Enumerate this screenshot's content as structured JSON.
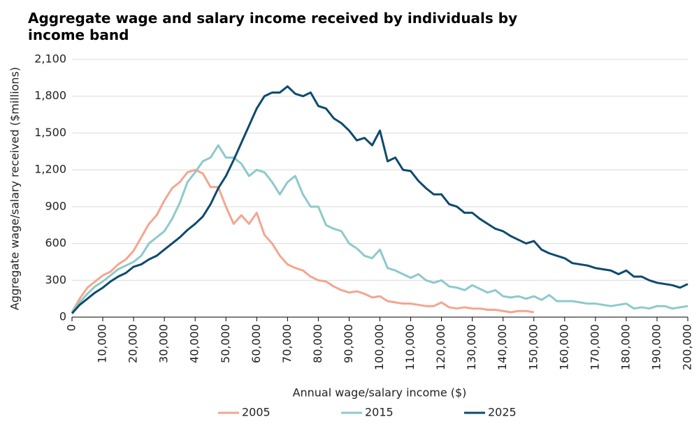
{
  "chart_data": {
    "type": "line",
    "title": "Aggregate wage and salary income received by individuals by income band",
    "x_label": "Annual wage/salary income ($)",
    "y_label": "Aggregate wage/salary received ($millions)",
    "x": [
      0,
      2500,
      5000,
      7500,
      10000,
      12500,
      15000,
      17500,
      20000,
      22500,
      25000,
      27500,
      30000,
      32500,
      35000,
      37500,
      40000,
      42500,
      45000,
      47500,
      50000,
      52500,
      55000,
      57500,
      60000,
      62500,
      65000,
      67500,
      70000,
      72500,
      75000,
      77500,
      80000,
      82500,
      85000,
      87500,
      90000,
      92500,
      95000,
      97500,
      100000,
      102500,
      105000,
      107500,
      110000,
      112500,
      115000,
      117500,
      120000,
      122500,
      125000,
      127500,
      130000,
      132500,
      135000,
      137500,
      140000,
      142500,
      145000,
      147500,
      150000,
      152500,
      155000,
      157500,
      160000,
      162500,
      165000,
      167500,
      170000,
      172500,
      175000,
      177500,
      180000,
      182500,
      185000,
      187500,
      190000,
      192500,
      195000,
      197500,
      200000
    ],
    "series": [
      {
        "name": "2005",
        "color": "#f4a58f",
        "values": [
          40,
          150,
          240,
          290,
          340,
          370,
          430,
          470,
          540,
          650,
          760,
          830,
          950,
          1050,
          1100,
          1180,
          1200,
          1170,
          1060,
          1060,
          900,
          760,
          830,
          760,
          850,
          670,
          600,
          500,
          430,
          400,
          380,
          330,
          300,
          290,
          250,
          220,
          200,
          210,
          190,
          160,
          170,
          130,
          120,
          110,
          110,
          100,
          90,
          90,
          120,
          80,
          70,
          80,
          70,
          70,
          60,
          60,
          50,
          40,
          50,
          50,
          40,
          null,
          null,
          null,
          null,
          null,
          null,
          null,
          null,
          null,
          null,
          null,
          null,
          null,
          null,
          null,
          null,
          null,
          null,
          null,
          null
        ]
      },
      {
        "name": "2015",
        "color": "#8ec9cc",
        "values": [
          40,
          120,
          190,
          250,
          290,
          340,
          390,
          420,
          450,
          500,
          600,
          650,
          700,
          800,
          930,
          1100,
          1180,
          1270,
          1300,
          1400,
          1300,
          1300,
          1250,
          1150,
          1200,
          1180,
          1100,
          1000,
          1100,
          1150,
          1000,
          900,
          900,
          750,
          720,
          700,
          600,
          560,
          500,
          480,
          550,
          400,
          380,
          350,
          320,
          350,
          300,
          280,
          300,
          250,
          240,
          220,
          260,
          230,
          200,
          220,
          170,
          160,
          170,
          150,
          170,
          140,
          180,
          130,
          130,
          130,
          120,
          110,
          110,
          100,
          90,
          100,
          110,
          70,
          80,
          70,
          90,
          90,
          70,
          80,
          90
        ]
      },
      {
        "name": "2025",
        "color": "#0d4a6e",
        "values": [
          30,
          100,
          150,
          200,
          240,
          290,
          330,
          360,
          410,
          430,
          470,
          500,
          550,
          600,
          650,
          710,
          760,
          820,
          920,
          1050,
          1150,
          1280,
          1420,
          1560,
          1700,
          1800,
          1830,
          1830,
          1880,
          1820,
          1800,
          1830,
          1720,
          1700,
          1620,
          1580,
          1520,
          1440,
          1460,
          1400,
          1520,
          1270,
          1300,
          1200,
          1190,
          1110,
          1050,
          1000,
          1000,
          920,
          900,
          850,
          850,
          800,
          760,
          720,
          700,
          660,
          630,
          600,
          620,
          550,
          520,
          500,
          480,
          440,
          430,
          420,
          400,
          390,
          380,
          350,
          380,
          330,
          330,
          300,
          280,
          270,
          260,
          240,
          270
        ]
      }
    ],
    "xlim": [
      0,
      200000
    ],
    "xticks": [
      0,
      {
        "value": 10000,
        "label": "10,000"
      },
      {
        "value": 20000,
        "label": "20,000"
      },
      {
        "value": 30000,
        "label": "30,000"
      },
      {
        "value": 40000,
        "label": "40,000"
      },
      {
        "value": 50000,
        "label": "50,000"
      },
      {
        "value": 60000,
        "label": "60,000"
      },
      {
        "value": 70000,
        "label": "70,000"
      },
      {
        "value": 80000,
        "label": "80,000"
      },
      {
        "value": 90000,
        "label": "90,000"
      },
      {
        "value": 100000,
        "label": "100,000"
      },
      {
        "value": 110000,
        "label": "110,000"
      },
      {
        "value": 120000,
        "label": "120,000"
      },
      {
        "value": 130000,
        "label": "130,000"
      },
      {
        "value": 140000,
        "label": "140,000"
      },
      {
        "value": 150000,
        "label": "150,000"
      },
      {
        "value": 160000,
        "label": "160,000"
      },
      {
        "value": 170000,
        "label": "170,000"
      },
      {
        "value": 180000,
        "label": "180,000"
      },
      {
        "value": 190000,
        "label": "190,000"
      },
      {
        "value": 200000,
        "label": "200,000"
      }
    ],
    "ylim": [
      0,
      2100
    ],
    "yticks": [
      0,
      300,
      600,
      900,
      {
        "value": 1200,
        "label": "1,200"
      },
      {
        "value": 1500,
        "label": "1,500"
      },
      {
        "value": 1800,
        "label": "1,800"
      },
      {
        "value": 2100,
        "label": "2,100"
      }
    ],
    "grid": true,
    "legend": "bottom"
  }
}
